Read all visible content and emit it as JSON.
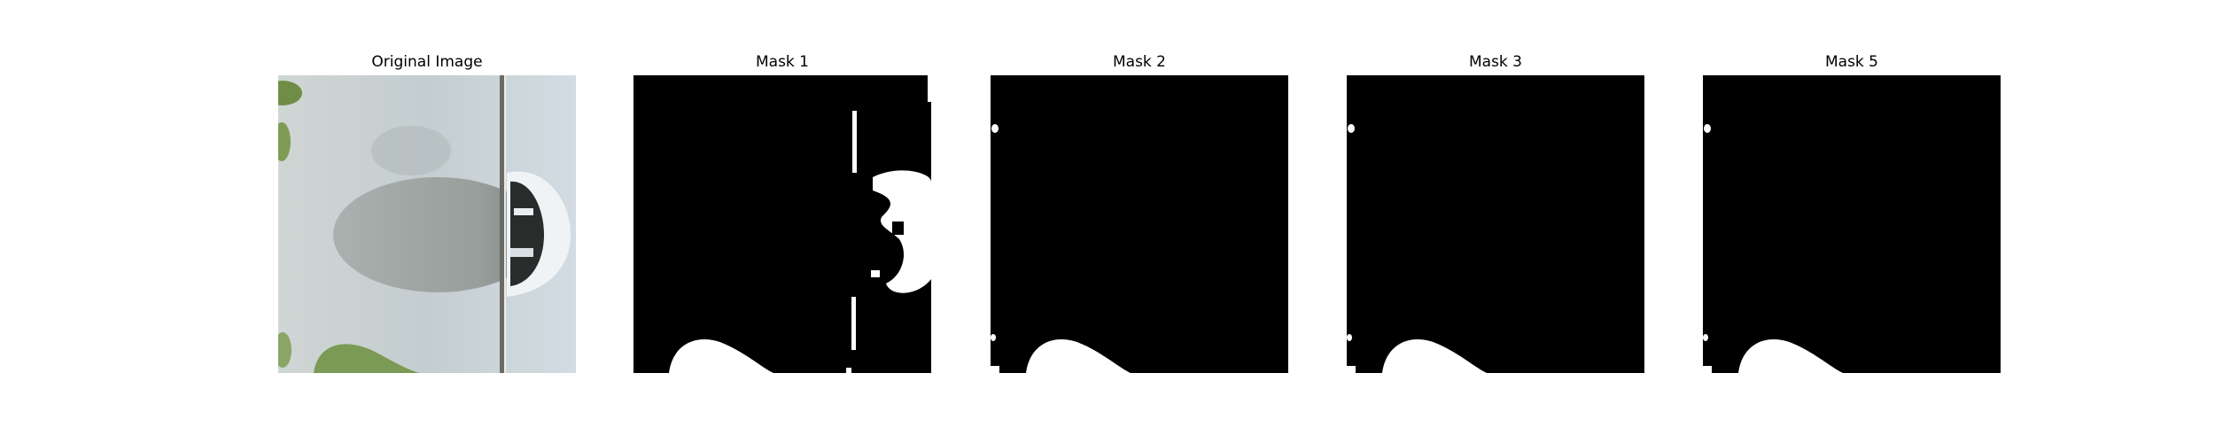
{
  "figure": {
    "panels": [
      {
        "title": "Original Image",
        "kind": "photo"
      },
      {
        "title": "Mask 1",
        "kind": "mask"
      },
      {
        "title": "Mask 2",
        "kind": "mask"
      },
      {
        "title": "Mask 3",
        "kind": "mask"
      },
      {
        "title": "Mask 5",
        "kind": "mask"
      }
    ]
  },
  "colors": {
    "mask_background": "#000000",
    "mask_foreground": "#ffffff",
    "photo_background": "#c9d2d4",
    "photo_shadow": "#a9b0b1",
    "leaf_green": "#7b9a55"
  }
}
